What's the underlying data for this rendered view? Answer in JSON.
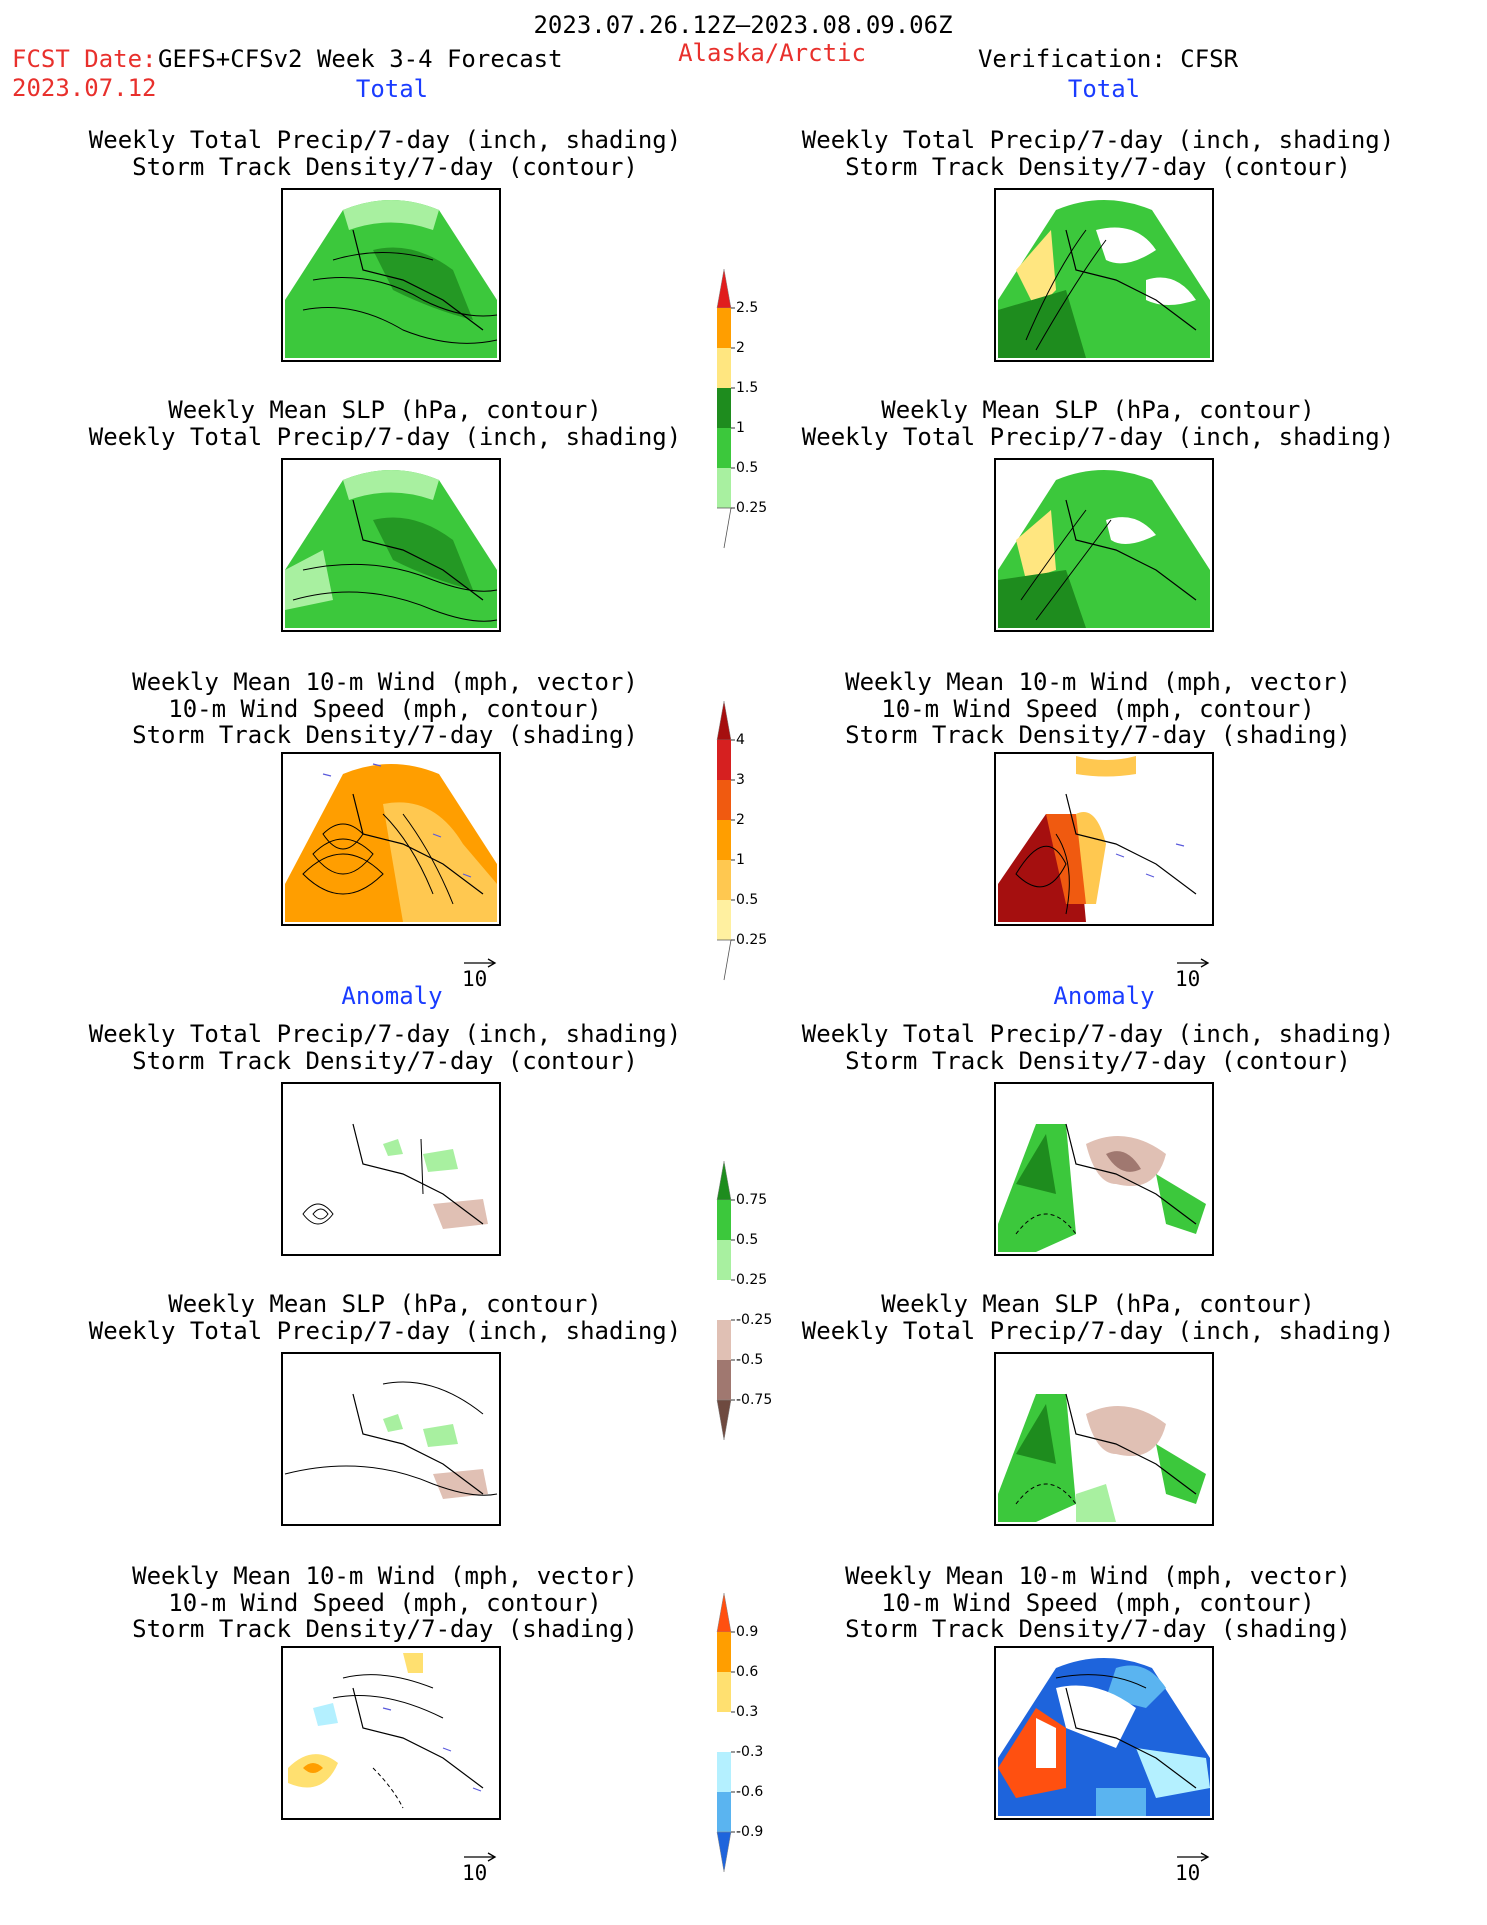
{
  "header": {
    "period": "2023.07.26.12Z—2023.08.09.06Z",
    "fcst_date_label": "FCST Date:",
    "fcst_date_value": "2023.07.12",
    "product": "GEFS+CFSv2 Week 3-4 Forecast",
    "region": "Alaska/Arctic",
    "verification": "Verification: CFSR"
  },
  "sections": {
    "total": "Total",
    "anomaly": "Anomaly"
  },
  "titles": {
    "precip_track": [
      "Weekly Total Precip/7-day (inch, shading)",
      "Storm Track Density/7-day (contour)"
    ],
    "slp_precip": [
      "Weekly Mean SLP (hPa, contour)",
      "Weekly Total Precip/7-day (inch, shading)"
    ],
    "wind": [
      "Weekly Mean 10-m Wind (mph, vector)",
      "10-m Wind Speed (mph, contour)",
      "Storm Track Density/7-day (shading)"
    ]
  },
  "vector_reference": "10",
  "colorbars": {
    "precip_total": {
      "labels": [
        "2.5",
        "2",
        "1.5",
        "1",
        "0.5",
        "0.25"
      ],
      "colors": [
        "#e01e1e",
        "#ff9e00",
        "#ffe680",
        "#1e8c1e",
        "#3cc83c",
        "#a8f0a0"
      ]
    },
    "track_total": {
      "labels": [
        "4",
        "3",
        "2",
        "1",
        "0.5",
        "0.25"
      ],
      "colors": [
        "#a50f0f",
        "#d62020",
        "#f05a10",
        "#ff9e00",
        "#ffc850",
        "#fff0a0"
      ]
    },
    "precip_anom": {
      "labels": [
        "0.75",
        "0.5",
        "0.25",
        "-0.25",
        "-0.5",
        "-0.75"
      ],
      "colors": [
        "#1e8c1e",
        "#3cc83c",
        "#a8f0a0",
        "#ffffff",
        "#e0c0b4",
        "#a07870",
        "#6e4a40"
      ]
    },
    "track_anom": {
      "labels": [
        "0.9",
        "0.6",
        "0.3",
        "-0.3",
        "-0.6",
        "-0.9"
      ],
      "colors": [
        "#ff5010",
        "#ff9e00",
        "#ffe070",
        "#ffffff",
        "#b4f0ff",
        "#5ab4f0",
        "#1e64dc"
      ]
    }
  }
}
